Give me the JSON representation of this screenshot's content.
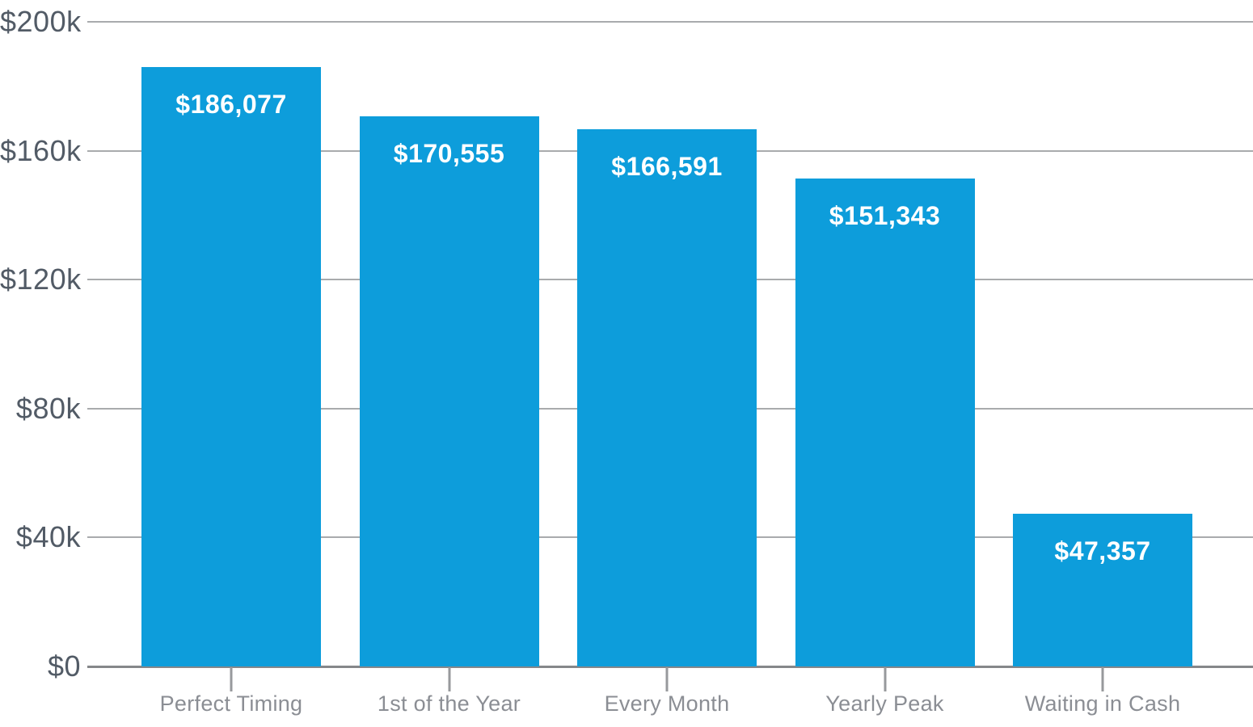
{
  "chart_data": {
    "type": "bar",
    "title": "",
    "xlabel": "",
    "ylabel": "",
    "categories": [
      "Perfect Timing",
      "1st of the Year",
      "Every Month",
      "Yearly Peak",
      "Waiting in Cash"
    ],
    "values": [
      186077,
      170555,
      166591,
      151343,
      47357
    ],
    "value_labels": [
      "$186,077",
      "$170,555",
      "$166,591",
      "$151,343",
      "$47,357"
    ],
    "ylim": [
      0,
      200000
    ],
    "y_ticks": [
      {
        "value": 0,
        "label": "$0"
      },
      {
        "value": 40000,
        "label": "$40k"
      },
      {
        "value": 80000,
        "label": "$80k"
      },
      {
        "value": 120000,
        "label": "$120k"
      },
      {
        "value": 160000,
        "label": "$160k"
      },
      {
        "value": 200000,
        "label": "$200k"
      }
    ],
    "grid": true,
    "legend": false,
    "colors": {
      "bar": "#0d9ddb",
      "value_label": "#ffffff",
      "y_tick_label": "#525b66",
      "category_label": "#8b8e94",
      "gridline": "#a9abad",
      "axis_line": "#85878a",
      "x_tick": "#97999c",
      "background": "#ffffff"
    }
  }
}
